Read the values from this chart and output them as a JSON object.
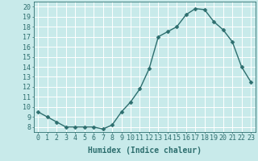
{
  "x": [
    0,
    1,
    2,
    3,
    4,
    5,
    6,
    7,
    8,
    9,
    10,
    11,
    12,
    13,
    14,
    15,
    16,
    17,
    18,
    19,
    20,
    21,
    22,
    23
  ],
  "y": [
    9.5,
    9.0,
    8.5,
    8.0,
    8.0,
    8.0,
    8.0,
    7.8,
    8.2,
    9.5,
    10.5,
    11.8,
    13.8,
    17.0,
    17.5,
    18.0,
    19.2,
    19.8,
    19.7,
    18.5,
    17.7,
    16.5,
    14.0,
    12.5
  ],
  "line_color": "#2d6e6e",
  "marker": "D",
  "markersize": 2.5,
  "linewidth": 1.0,
  "xlabel": "Humidex (Indice chaleur)",
  "xlim": [
    -0.5,
    23.5
  ],
  "ylim": [
    7.5,
    20.5
  ],
  "yticks": [
    8,
    9,
    10,
    11,
    12,
    13,
    14,
    15,
    16,
    17,
    18,
    19,
    20
  ],
  "xticks": [
    0,
    1,
    2,
    3,
    4,
    5,
    6,
    7,
    8,
    9,
    10,
    11,
    12,
    13,
    14,
    15,
    16,
    17,
    18,
    19,
    20,
    21,
    22,
    23
  ],
  "xtick_labels": [
    "0",
    "1",
    "2",
    "3",
    "4",
    "5",
    "6",
    "7",
    "8",
    "9",
    "10",
    "11",
    "12",
    "13",
    "14",
    "15",
    "16",
    "17",
    "18",
    "19",
    "20",
    "21",
    "22",
    "23"
  ],
  "bg_color": "#c8eaea",
  "grid_color": "#ffffff",
  "tick_color": "#2d6e6e",
  "label_color": "#2d6e6e",
  "xlabel_fontsize": 7,
  "tick_fontsize": 6
}
